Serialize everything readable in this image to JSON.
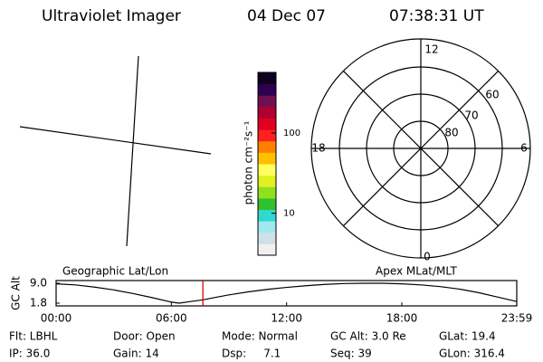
{
  "header": {
    "instrument": "Ultraviolet Imager",
    "date": "04 Dec 07",
    "time": "07:38:31 UT"
  },
  "geo_panel": {
    "label": "Geographic Lat/Lon"
  },
  "polar_panel": {
    "label": "Apex MLat/MLT",
    "mlt_labels": [
      "12",
      "18",
      "6",
      "0"
    ],
    "mlat_labels": [
      "60",
      "70",
      "80"
    ]
  },
  "chart_data": [
    {
      "type": "colorbar",
      "axis_label": "photon cm⁻²s⁻¹",
      "log_scale": true,
      "ylim": [
        3,
        570
      ],
      "yticks": [
        10,
        100
      ],
      "colors": [
        "#f0f0f0",
        "#d0e0e8",
        "#a0e8f0",
        "#30d8d0",
        "#30c030",
        "#90e020",
        "#e0f020",
        "#ffff60",
        "#ffc000",
        "#ff8000",
        "#ff2020",
        "#e00020",
        "#b00030",
        "#701050",
        "#300050",
        "#100020"
      ]
    },
    {
      "type": "line",
      "ylabel": "GC Alt",
      "color": "#000000",
      "x": [
        0,
        1,
        2,
        3,
        4,
        5,
        6,
        6.4,
        7,
        7.642,
        8,
        9,
        10,
        11,
        12,
        13,
        14,
        15,
        16,
        17,
        18,
        19,
        20,
        21,
        22,
        23,
        23.983
      ],
      "y": [
        8.8,
        8.4,
        7.6,
        6.6,
        5.3,
        3.8,
        2.2,
        1.8,
        2.4,
        3.0,
        3.5,
        4.8,
        5.9,
        6.8,
        7.5,
        8.1,
        8.6,
        8.9,
        9.0,
        9.0,
        8.8,
        8.4,
        7.8,
        6.9,
        5.6,
        4.0,
        2.4
      ],
      "xlim": [
        0,
        23.983
      ],
      "ylim": [
        1.8,
        9.0
      ],
      "xticks": [
        {
          "value": 0,
          "label": "00:00"
        },
        {
          "value": 6,
          "label": "06:00"
        },
        {
          "value": 12,
          "label": "12:00"
        },
        {
          "value": 18,
          "label": "18:00"
        },
        {
          "value": 23.983,
          "label": "23:59"
        }
      ],
      "yticks": [
        1.8,
        {
          "value": 9,
          "label": "9.0"
        }
      ],
      "marker": {
        "x": 7.642,
        "color": "#e00000"
      }
    }
  ],
  "status": [
    [
      "Flt: LBHL",
      "Door: Open",
      "Mode: Normal",
      "GC Alt: 3.0 Re",
      "GLat: 19.4"
    ],
    [
      "IP: 36.0",
      "Gain: 14",
      "Dsp:     7.1",
      "Seq: 39",
      "GLon: 316.4"
    ]
  ]
}
